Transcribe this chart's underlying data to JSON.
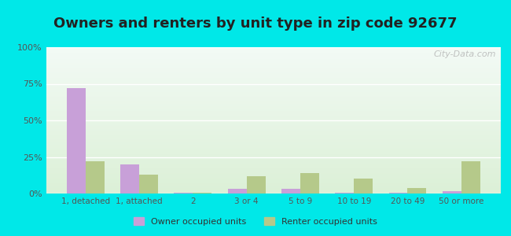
{
  "title": "Owners and renters by unit type in zip code 92677",
  "categories": [
    "1, detached",
    "1, attached",
    "2",
    "3 or 4",
    "5 to 9",
    "10 to 19",
    "20 to 49",
    "50 or more"
  ],
  "owner_values": [
    72,
    20,
    0.5,
    3,
    3,
    0.5,
    0.5,
    1.5
  ],
  "renter_values": [
    22,
    13,
    0.5,
    12,
    14,
    10,
    4,
    22
  ],
  "owner_color": "#c8a0d8",
  "renter_color": "#b5c98a",
  "outer_bg": "#00e8e8",
  "ylim": [
    0,
    100
  ],
  "yticks": [
    0,
    25,
    50,
    75,
    100
  ],
  "ytick_labels": [
    "0%",
    "25%",
    "50%",
    "75%",
    "100%"
  ],
  "owner_label": "Owner occupied units",
  "renter_label": "Renter occupied units",
  "title_fontsize": 13,
  "bar_width": 0.35,
  "watermark": "City-Data.com"
}
